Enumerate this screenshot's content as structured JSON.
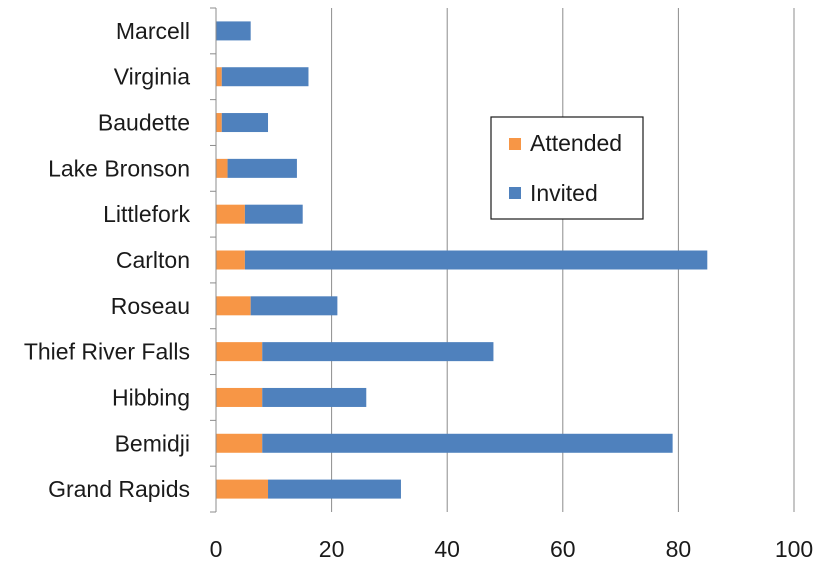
{
  "chart_data": {
    "type": "bar",
    "orientation": "horizontal",
    "stacked": true,
    "categories": [
      "Marcell",
      "Virginia",
      "Baudette",
      "Lake Bronson",
      "Littlefork",
      "Carlton",
      "Roseau",
      "Thief River Falls",
      "Hibbing",
      "Bemidji",
      "Grand Rapids"
    ],
    "series": [
      {
        "name": "Attended",
        "color": "#f79646",
        "values": [
          0,
          1,
          1,
          2,
          5,
          5,
          6,
          8,
          8,
          8,
          9
        ]
      },
      {
        "name": "Invited",
        "color": "#4f81bd",
        "values": [
          6,
          15,
          8,
          12,
          10,
          80,
          15,
          40,
          18,
          71,
          23
        ]
      }
    ],
    "xlim": [
      0,
      100
    ],
    "xticks": [
      0,
      20,
      40,
      60,
      80,
      100
    ],
    "grid": true,
    "legend_position": "upper-right-inside",
    "title": "",
    "xlabel": "",
    "ylabel": ""
  }
}
